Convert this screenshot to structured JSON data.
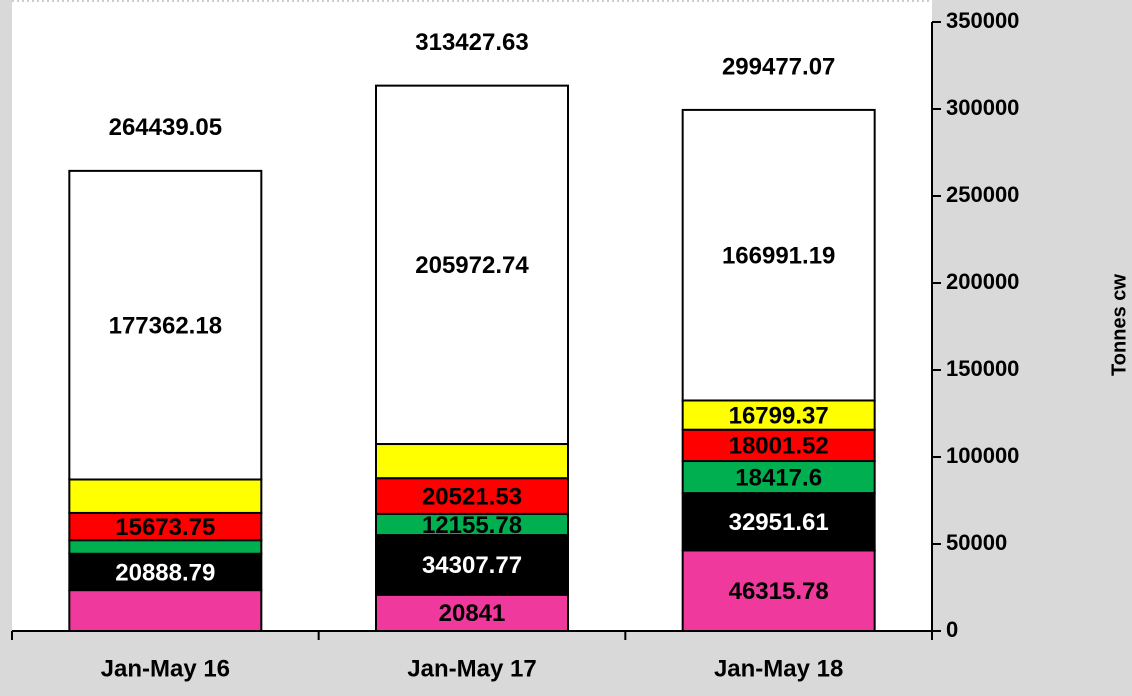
{
  "chart_data": {
    "type": "stacked_bar",
    "categories": [
      "Jan-May 16",
      "Jan-May 17",
      "Jan-May 18"
    ],
    "series": [
      {
        "color": "#f0399c",
        "values": [
          23500,
          20841,
          46315.78
        ],
        "value_labels": [
          null,
          "20841",
          "46315.78"
        ]
      },
      {
        "color": "#000000",
        "values": [
          20888.79,
          34307.77,
          32951.61
        ],
        "value_labels": [
          "20888.79",
          "34307.77",
          "32951.61"
        ]
      },
      {
        "color": "#00b050",
        "values": [
          7800,
          12155.78,
          18417.6
        ],
        "value_labels": [
          null,
          "12155.78",
          "18417.6"
        ]
      },
      {
        "color": "#ff0000",
        "values": [
          15673.75,
          20521.53,
          18001.52
        ],
        "value_labels": [
          "15673.75",
          "20521.53",
          "18001.52"
        ]
      },
      {
        "color": "#ffff00",
        "values": [
          19214.33,
          19628.81,
          16799.37
        ],
        "value_labels": [
          null,
          null,
          "16799.37"
        ]
      },
      {
        "color": "#ffffff",
        "values": [
          177362.18,
          205972.74,
          166991.19
        ],
        "value_labels": [
          "177362.18",
          "205972.74",
          "166991.19"
        ]
      }
    ],
    "totals": [
      264439.05,
      313427.63,
      299477.07
    ],
    "y_label": "Tonnes cw",
    "ylim": [
      0,
      350000
    ],
    "yticks": [
      0,
      50000,
      100000,
      150000,
      200000,
      250000,
      300000,
      350000
    ],
    "axis_side": "right"
  }
}
